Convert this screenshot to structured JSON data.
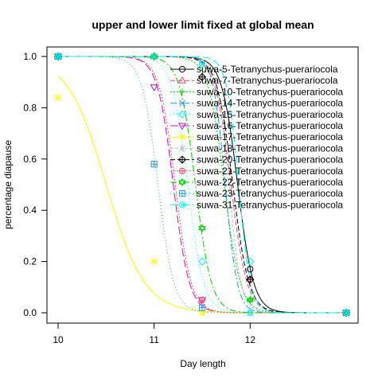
{
  "chart_data": {
    "type": "line",
    "title": "upper and lower limit fixed at global mean",
    "xlabel": "Day length",
    "ylabel": "percentage diapause",
    "xlim": [
      10,
      13
    ],
    "ylim": [
      0,
      1
    ],
    "x_ticks": [
      10,
      11,
      12
    ],
    "y_ticks": [
      "0.0",
      "0.2",
      "0.4",
      "0.6",
      "0.8",
      "1.0"
    ],
    "grid": false,
    "legend_position": "top-right",
    "series": [
      {
        "name": "suwa-5-Tetranychus-puerariocola",
        "color": "#000000",
        "marker": "circle",
        "points": [
          [
            10,
            1.0
          ],
          [
            11,
            1.0
          ],
          [
            12,
            0.17
          ],
          [
            13,
            0.0
          ]
        ],
        "midpoint": 11.87,
        "slope": 12
      },
      {
        "name": "suwa-7-Tetranychus-puerariocola",
        "color": "#DF536B",
        "marker": "triangle",
        "points": [
          [
            10,
            1.0
          ],
          [
            11,
            1.0
          ],
          [
            12,
            0.13
          ],
          [
            13,
            0.0
          ]
        ],
        "midpoint": 11.8,
        "slope": 12
      },
      {
        "name": "suwa-10-Tetranychus-puerariocola",
        "color": "#00CD00",
        "marker": "plus",
        "points": [
          [
            10,
            1.0
          ],
          [
            11,
            1.0
          ],
          [
            12,
            0.05
          ],
          [
            13,
            0.0
          ]
        ],
        "midpoint": 11.73,
        "slope": 12
      },
      {
        "name": "suwa-14-Tetranychus-puerariocola",
        "color": "#2297E6",
        "marker": "cross",
        "points": [
          [
            10,
            1.0
          ],
          [
            11,
            1.0
          ],
          [
            11.5,
            0.97
          ],
          [
            12,
            0.0
          ],
          [
            13,
            0.0
          ]
        ],
        "midpoint": 11.74,
        "slope": 16
      },
      {
        "name": "suwa-15-Tetranychus-puerariocola",
        "color": "#00FFFF",
        "marker": "diamond",
        "points": [
          [
            10,
            1.0
          ],
          [
            11,
            1.0
          ],
          [
            11.5,
            0.2
          ],
          [
            12,
            0.2
          ],
          [
            13,
            0.0
          ]
        ],
        "midpoint": 11.35,
        "slope": 12
      },
      {
        "name": "suwa-16-Tetranychus-puerariocola",
        "color": "#CD0BBC",
        "marker": "triangle-down",
        "points": [
          [
            10,
            1.0
          ],
          [
            11,
            0.88
          ],
          [
            11.5,
            0.05
          ],
          [
            13,
            0.0
          ]
        ],
        "midpoint": 11.2,
        "slope": 12
      },
      {
        "name": "suwa-17-Tetranychus-puerariocola",
        "color": "#FFFF00",
        "marker": "star",
        "points": [
          [
            10,
            0.84
          ],
          [
            11,
            0.2
          ],
          [
            11.5,
            0.0
          ],
          [
            13,
            0.0
          ]
        ],
        "midpoint": 10.5,
        "slope": 5
      },
      {
        "name": "suwa-18-Tetranychus-puerariocola",
        "color": "#BEBEBE",
        "marker": "asterisk",
        "points": [
          [
            10,
            1.0
          ],
          [
            11,
            1.0
          ],
          [
            12,
            0.0
          ],
          [
            13,
            0.0
          ]
        ],
        "midpoint": 11.78,
        "slope": 16
      },
      {
        "name": "suwa-20-Tetranychus-puerariocola",
        "color": "#000000",
        "marker": "diamond-plus",
        "points": [
          [
            10,
            1.0
          ],
          [
            11,
            1.0
          ],
          [
            11.5,
            0.92
          ],
          [
            12,
            0.13
          ],
          [
            13,
            0.0
          ]
        ],
        "midpoint": 11.82,
        "slope": 12
      },
      {
        "name": "suwa-21-Tetranychus-puerariocola",
        "color": "#DF536B",
        "marker": "circle-plus",
        "points": [
          [
            10,
            1.0
          ],
          [
            11,
            1.0
          ],
          [
            11.5,
            0.05
          ],
          [
            13,
            0.0
          ]
        ],
        "midpoint": 11.22,
        "slope": 12
      },
      {
        "name": "suwa-22-Tetranychus-puerariocola",
        "color": "#00CD00",
        "marker": "star-of-david",
        "points": [
          [
            10,
            1.0
          ],
          [
            11,
            1.0
          ],
          [
            11.5,
            0.33
          ],
          [
            12,
            0.05
          ],
          [
            13,
            0.0
          ]
        ],
        "midpoint": 11.43,
        "slope": 12
      },
      {
        "name": "suwa-23-Tetranychus-puerariocola",
        "color": "#2297E6",
        "marker": "square-plus",
        "points": [
          [
            10,
            1.0
          ],
          [
            11,
            0.58
          ],
          [
            11.5,
            0.02
          ],
          [
            13,
            0.0
          ]
        ],
        "midpoint": 11.04,
        "slope": 12
      },
      {
        "name": "suwa-31-Tetranychus-puerariocola",
        "color": "#00FFFF",
        "marker": "circle-cross",
        "points": [
          [
            10,
            1.0
          ],
          [
            11,
            1.0
          ],
          [
            11.5,
            0.97
          ],
          [
            12,
            0.0
          ],
          [
            13,
            0.0
          ]
        ],
        "midpoint": 11.88,
        "slope": 16
      }
    ]
  }
}
